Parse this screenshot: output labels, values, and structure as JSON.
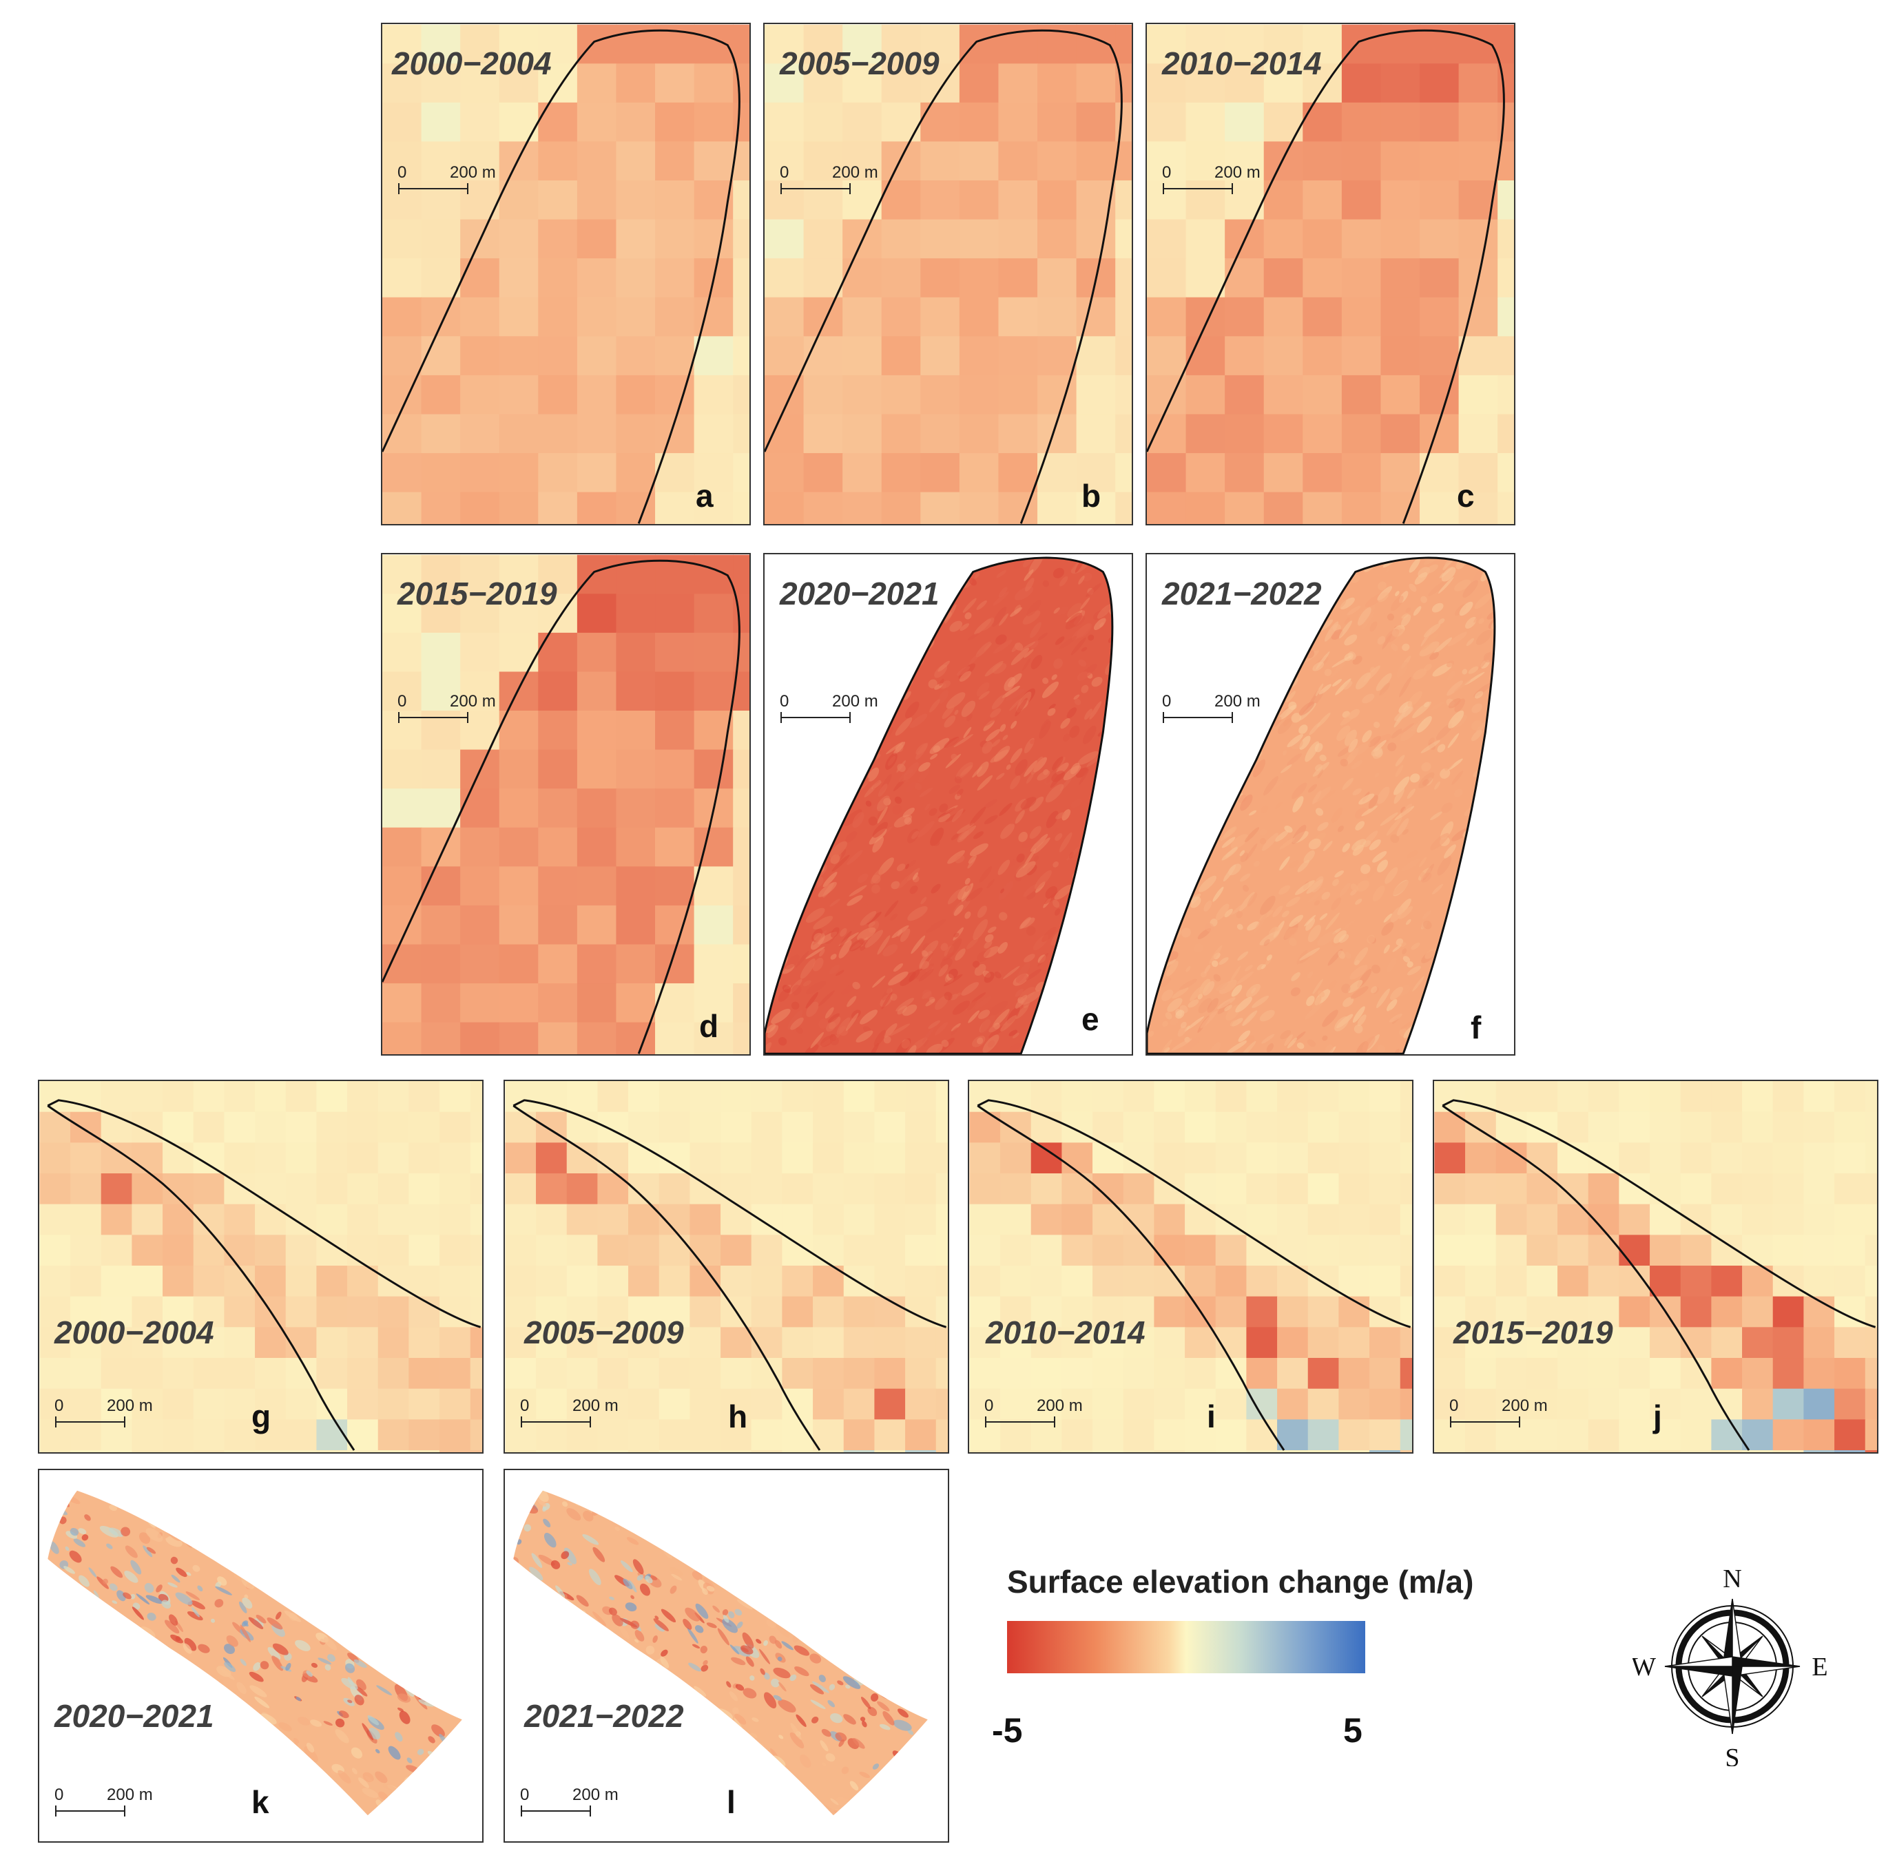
{
  "panels": [
    {
      "id": "a",
      "period": "2000−2004",
      "letter": "a",
      "scale": {
        "zero": "0",
        "dist": "200 m"
      }
    },
    {
      "id": "b",
      "period": "2005−2009",
      "letter": "b",
      "scale": {
        "zero": "0",
        "dist": "200 m"
      }
    },
    {
      "id": "c",
      "period": "2010−2014",
      "letter": "c",
      "scale": {
        "zero": "0",
        "dist": "200 m"
      }
    },
    {
      "id": "d",
      "period": "2015−2019",
      "letter": "d",
      "scale": {
        "zero": "0",
        "dist": "200 m"
      }
    },
    {
      "id": "e",
      "period": "2020−2021",
      "letter": "e",
      "scale": {
        "zero": "0",
        "dist": "200 m"
      }
    },
    {
      "id": "f",
      "period": "2021−2022",
      "letter": "f",
      "scale": {
        "zero": "0",
        "dist": "200 m"
      }
    },
    {
      "id": "g",
      "period": "2000−2004",
      "letter": "g",
      "scale": {
        "zero": "0",
        "dist": "200 m"
      }
    },
    {
      "id": "h",
      "period": "2005−2009",
      "letter": "h",
      "scale": {
        "zero": "0",
        "dist": "200 m"
      }
    },
    {
      "id": "i",
      "period": "2010−2014",
      "letter": "i",
      "scale": {
        "zero": "0",
        "dist": "200 m"
      }
    },
    {
      "id": "j",
      "period": "2015−2019",
      "letter": "j",
      "scale": {
        "zero": "0",
        "dist": "200 m"
      }
    },
    {
      "id": "k",
      "period": "2020−2021",
      "letter": "k",
      "scale": {
        "zero": "0",
        "dist": "200 m"
      }
    },
    {
      "id": "l",
      "period": "2021−2022",
      "letter": "l",
      "scale": {
        "zero": "0",
        "dist": "200 m"
      }
    }
  ],
  "legend": {
    "title": "Surface elevation change (m/a)",
    "min": "-5",
    "max": "5",
    "colors": {
      "negative": "#d83b2e",
      "neutral": "#fdf6c4",
      "positive": "#3a6fc2"
    }
  },
  "compass": {
    "n": "N",
    "s": "S",
    "e": "E",
    "w": "W"
  }
}
